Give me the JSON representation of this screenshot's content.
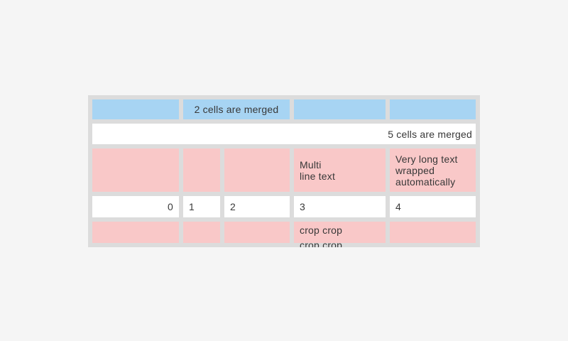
{
  "page": {
    "background": "#f5f5f5"
  },
  "table": {
    "colors": {
      "header_blue": "#a7d4f3",
      "pink": "#f9c8c8",
      "white": "#ffffff",
      "grid_gap": "#dcdcdc",
      "text": "#383838"
    },
    "header_row": {
      "merged_label": "2 cells are merged"
    },
    "full_span_row": {
      "label": "5 cells are merged"
    },
    "tall_row": {
      "multiline_text": "Multi\nline text",
      "wrapped_text": "Very long text wrapped automatically"
    },
    "numbers_row": [
      "0",
      "1",
      "2",
      "3",
      "4"
    ],
    "cropped_row": {
      "text": "crop crop crop crop"
    }
  }
}
